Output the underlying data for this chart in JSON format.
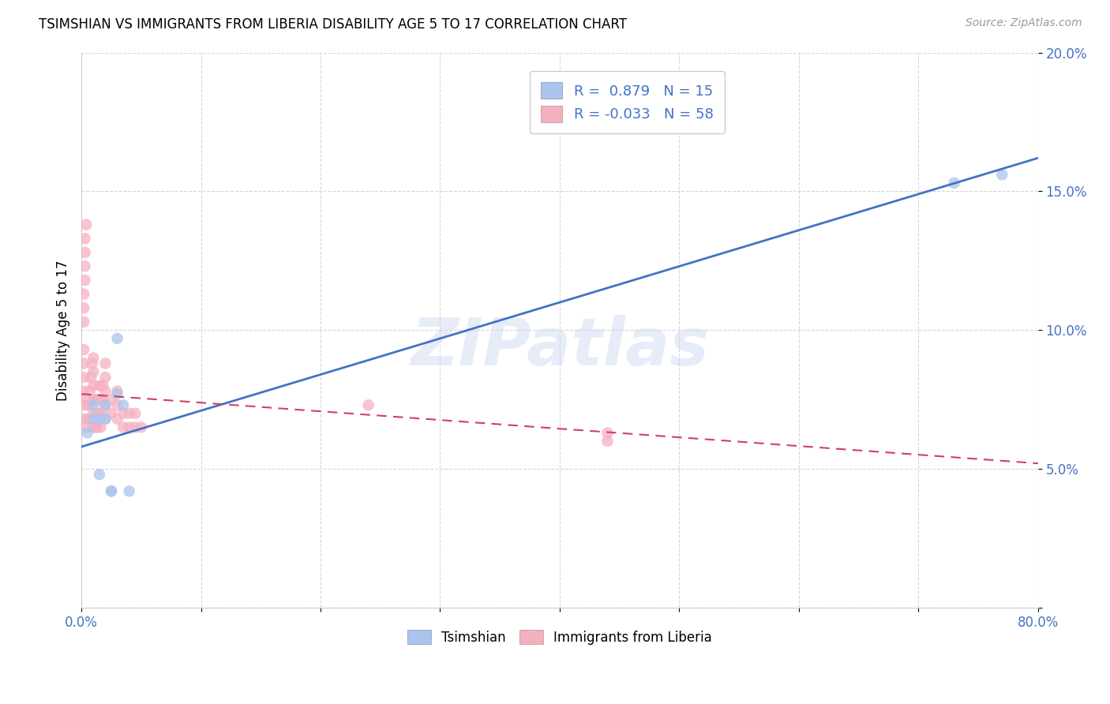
{
  "title": "TSIMSHIAN VS IMMIGRANTS FROM LIBERIA DISABILITY AGE 5 TO 17 CORRELATION CHART",
  "source": "Source: ZipAtlas.com",
  "ylabel": "Disability Age 5 to 17",
  "xlim": [
    0.0,
    0.8
  ],
  "ylim": [
    0.0,
    0.2
  ],
  "xticks": [
    0.0,
    0.1,
    0.2,
    0.3,
    0.4,
    0.5,
    0.6,
    0.7,
    0.8
  ],
  "xticklabels": [
    "0.0%",
    "",
    "",
    "",
    "",
    "",
    "",
    "",
    "80.0%"
  ],
  "yticks": [
    0.0,
    0.05,
    0.1,
    0.15,
    0.2
  ],
  "yticklabels": [
    "",
    "5.0%",
    "10.0%",
    "15.0%",
    "20.0%"
  ],
  "tsimshian_R": 0.879,
  "tsimshian_N": 15,
  "liberia_R": -0.033,
  "liberia_N": 58,
  "tsimshian_color": "#aac4ee",
  "liberia_color": "#f5b0c0",
  "tsimshian_line_color": "#4472c4",
  "liberia_line_color": "#d04060",
  "watermark": "ZIPatlas",
  "legend_R_color": "#4472c4",
  "legend_N_color": "#4472c4",
  "tsimshian_x": [
    0.005,
    0.01,
    0.01,
    0.015,
    0.015,
    0.02,
    0.02,
    0.025,
    0.025,
    0.03,
    0.03,
    0.035,
    0.04,
    0.73,
    0.77
  ],
  "tsimshian_y": [
    0.063,
    0.068,
    0.073,
    0.068,
    0.048,
    0.068,
    0.073,
    0.042,
    0.042,
    0.097,
    0.077,
    0.073,
    0.042,
    0.153,
    0.156
  ],
  "liberia_x": [
    0.002,
    0.002,
    0.002,
    0.002,
    0.002,
    0.002,
    0.002,
    0.002,
    0.002,
    0.003,
    0.003,
    0.003,
    0.003,
    0.004,
    0.004,
    0.004,
    0.005,
    0.006,
    0.007,
    0.008,
    0.009,
    0.01,
    0.01,
    0.01,
    0.01,
    0.01,
    0.01,
    0.012,
    0.012,
    0.012,
    0.013,
    0.015,
    0.015,
    0.015,
    0.016,
    0.016,
    0.017,
    0.018,
    0.02,
    0.02,
    0.02,
    0.02,
    0.02,
    0.025,
    0.025,
    0.03,
    0.03,
    0.03,
    0.035,
    0.035,
    0.04,
    0.04,
    0.045,
    0.045,
    0.05,
    0.24,
    0.44,
    0.44
  ],
  "liberia_y": [
    0.068,
    0.073,
    0.078,
    0.083,
    0.088,
    0.093,
    0.103,
    0.108,
    0.113,
    0.118,
    0.123,
    0.128,
    0.133,
    0.138,
    0.065,
    0.075,
    0.068,
    0.073,
    0.078,
    0.083,
    0.088,
    0.065,
    0.07,
    0.075,
    0.08,
    0.085,
    0.09,
    0.065,
    0.07,
    0.075,
    0.065,
    0.07,
    0.075,
    0.08,
    0.065,
    0.07,
    0.075,
    0.08,
    0.068,
    0.073,
    0.078,
    0.083,
    0.088,
    0.07,
    0.075,
    0.068,
    0.073,
    0.078,
    0.065,
    0.07,
    0.065,
    0.07,
    0.065,
    0.07,
    0.065,
    0.073,
    0.06,
    0.063
  ],
  "ts_line_x0": 0.0,
  "ts_line_y0": 0.058,
  "ts_line_x1": 0.8,
  "ts_line_y1": 0.162,
  "lib_line_x0": 0.0,
  "lib_line_y0": 0.077,
  "lib_line_x1": 0.8,
  "lib_line_y1": 0.052
}
